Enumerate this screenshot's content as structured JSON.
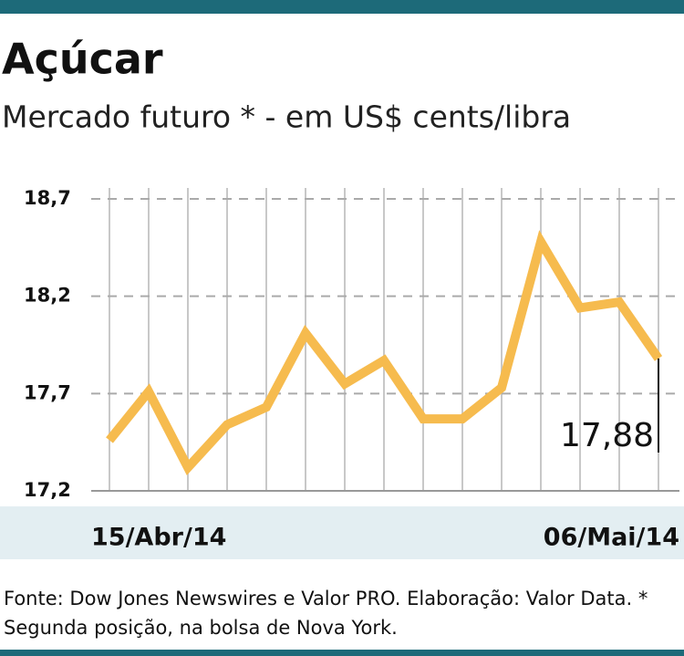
{
  "chart_data": {
    "type": "line",
    "title": "Açúcar",
    "subtitle": "Mercado futuro * - em US$ cents/libra",
    "categories": [
      "15/Abr/14",
      null,
      null,
      null,
      null,
      null,
      null,
      null,
      null,
      null,
      null,
      null,
      null,
      null,
      "06/Mai/14"
    ],
    "series": [
      {
        "name": "Açúcar",
        "color": "#f6bb4e",
        "values": [
          17.46,
          17.71,
          17.32,
          17.54,
          17.63,
          18.01,
          17.75,
          17.87,
          17.57,
          17.57,
          17.73,
          18.48,
          18.14,
          18.17,
          17.88
        ],
        "value_labels": [
          null,
          null,
          null,
          null,
          null,
          null,
          null,
          null,
          null,
          null,
          null,
          null,
          null,
          null,
          "17,88"
        ]
      }
    ],
    "ylim": [
      17.2,
      18.7
    ],
    "yticks": [
      {
        "value": 17.2,
        "label": "17,2"
      },
      {
        "value": 17.7,
        "label": "17,7"
      },
      {
        "value": 18.2,
        "label": "18,2"
      },
      {
        "value": 18.7,
        "label": "18,7"
      }
    ],
    "grid": true,
    "source": "Fonte: Dow Jones Newswires e Valor PRO. Elaboração: Valor Data. * Segunda posição, na bolsa de Nova York."
  }
}
